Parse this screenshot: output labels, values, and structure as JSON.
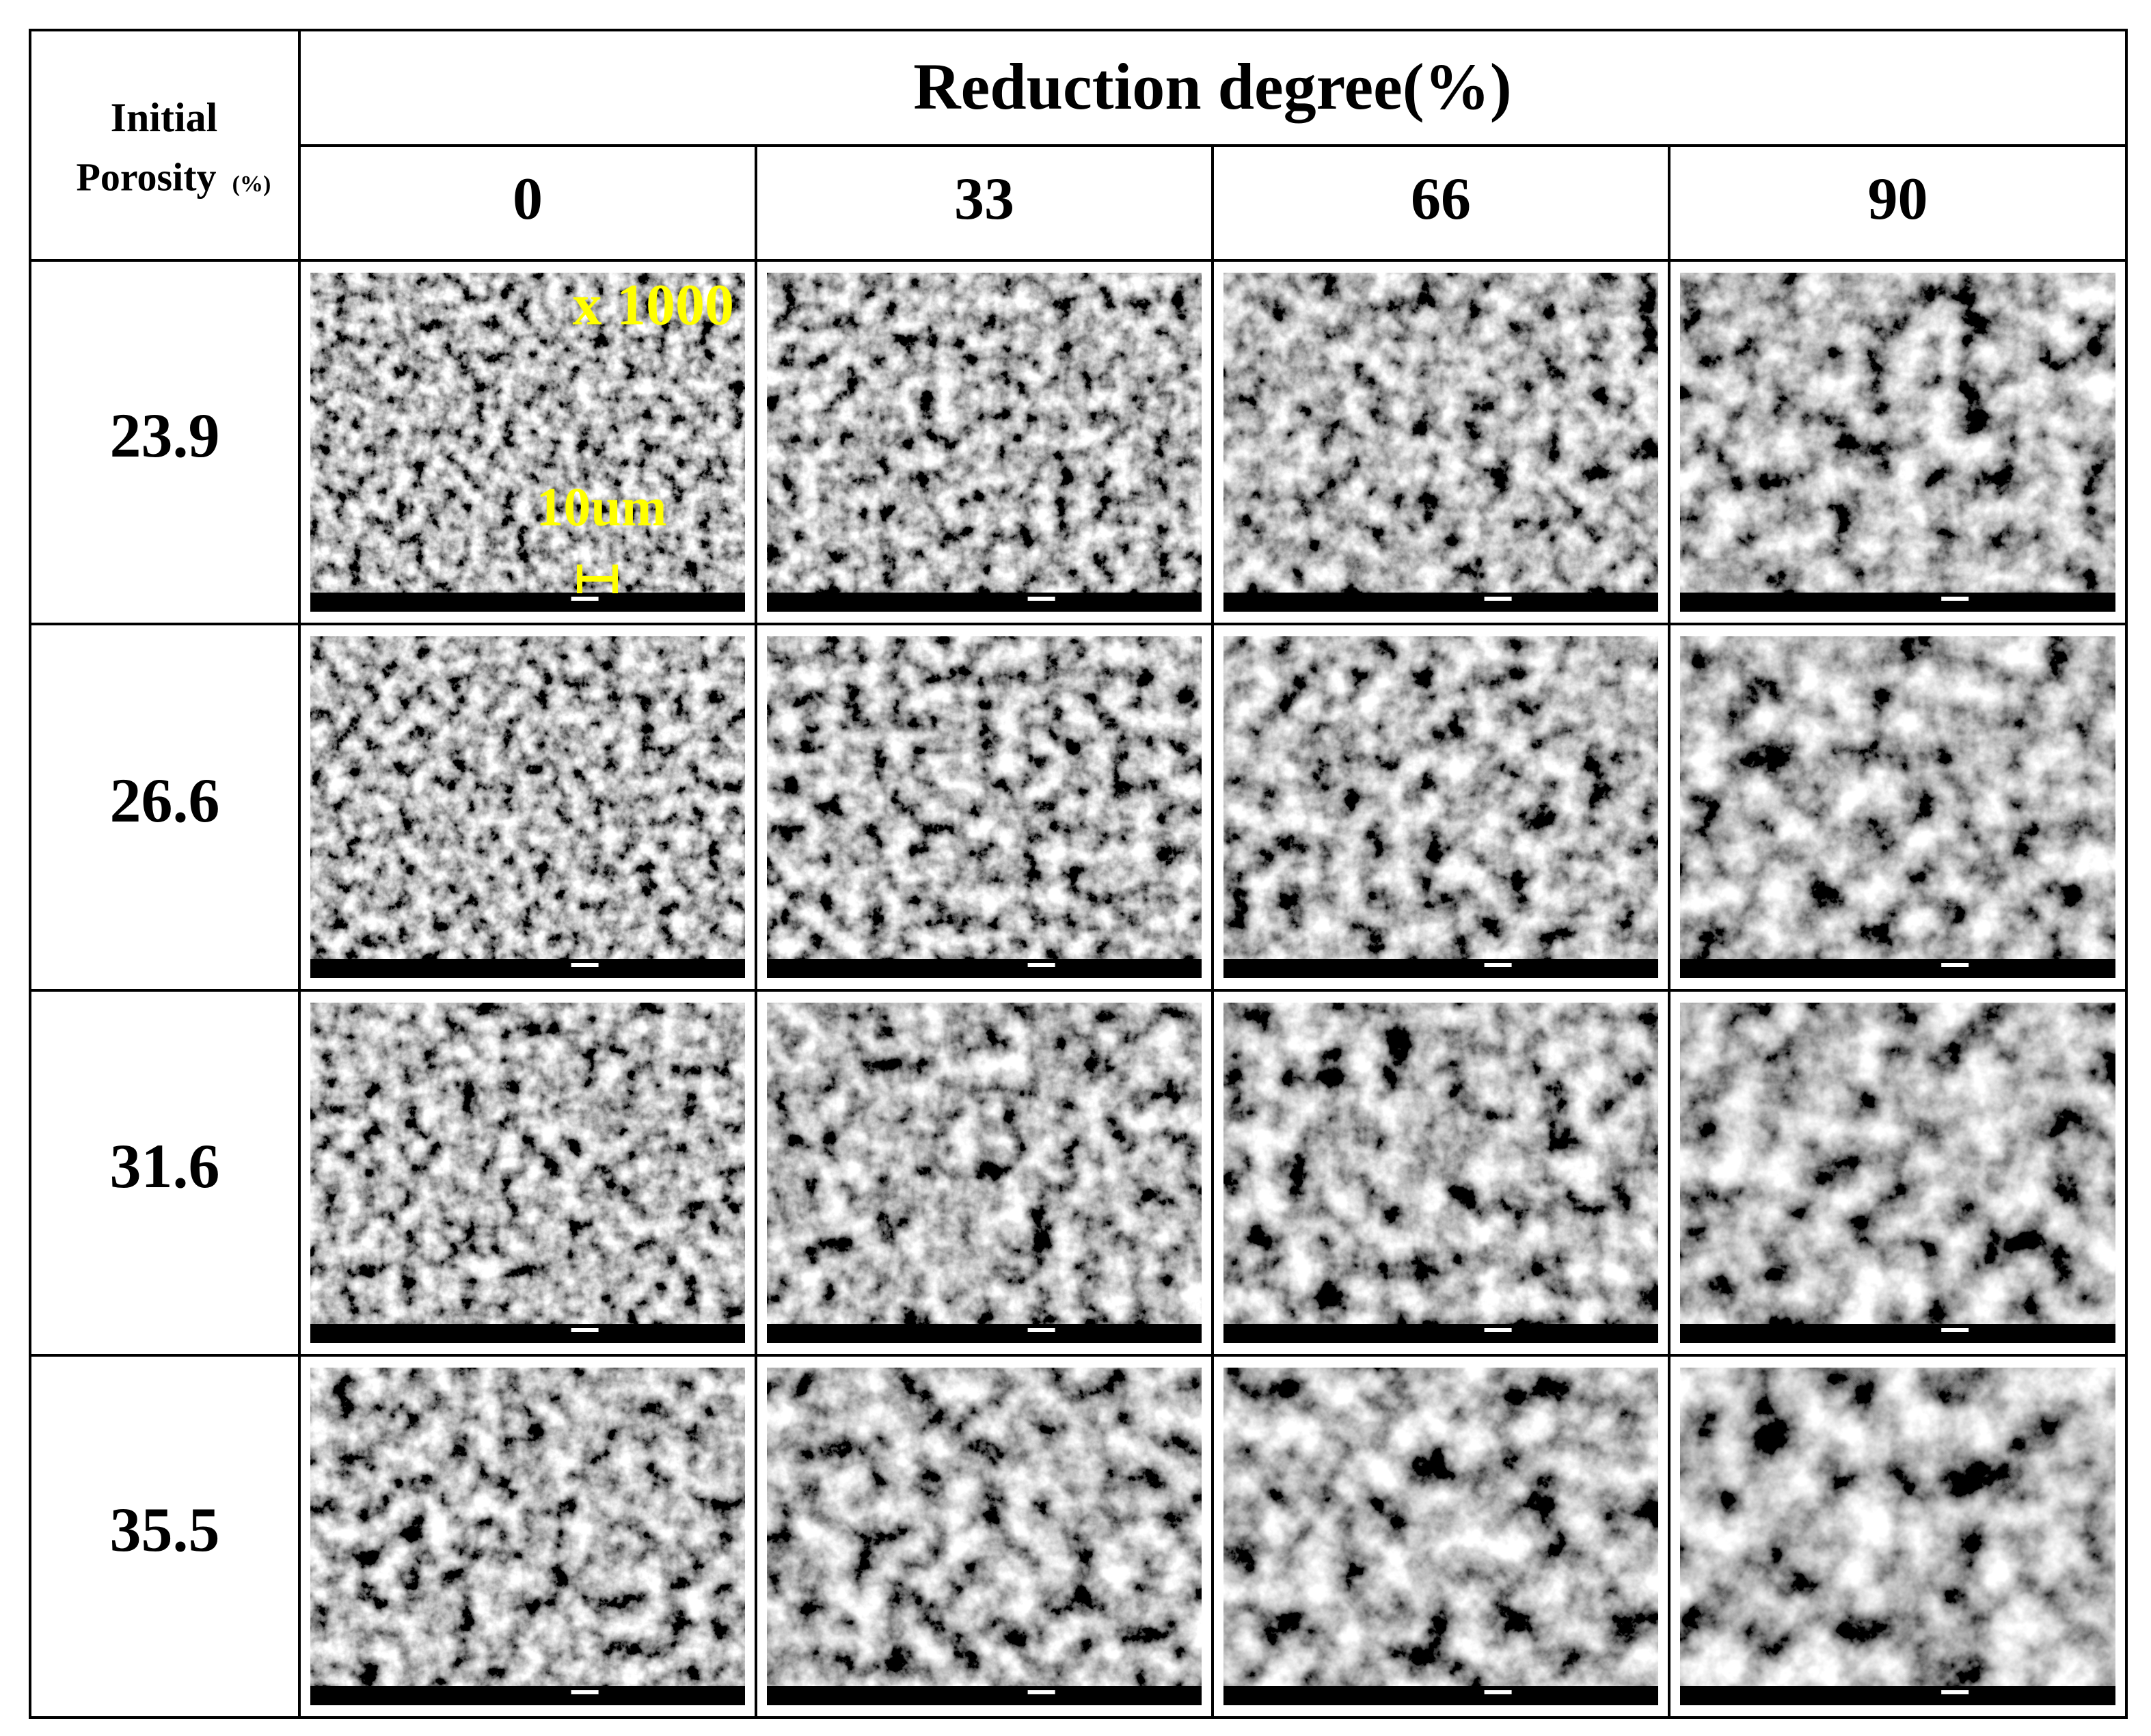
{
  "header": {
    "row_label": {
      "line1": "Initial",
      "line2": "Porosity",
      "unit": "(%)"
    },
    "title": "Reduction degree(%)",
    "columns": [
      "0",
      "33",
      "66",
      "90"
    ]
  },
  "rows": [
    {
      "label": "23.9"
    },
    {
      "label": "26.6"
    },
    {
      "label": "31.6"
    },
    {
      "label": "35.5"
    }
  ],
  "annotations": {
    "magnification": "x 1000",
    "scale_bar": "10um"
  }
}
